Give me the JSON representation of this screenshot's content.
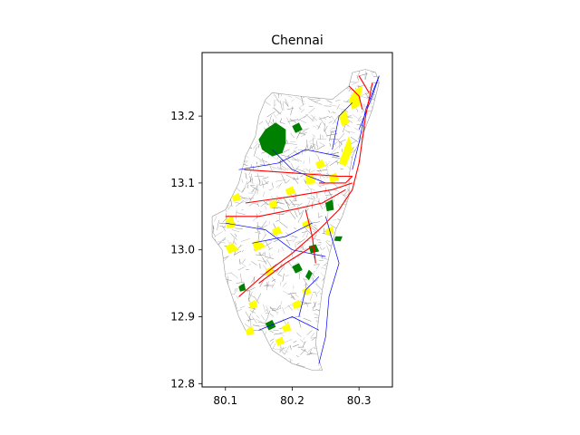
{
  "chart_data": {
    "type": "map",
    "title": "Chennai",
    "xlabel": "",
    "ylabel": "",
    "xlim": [
      80.065,
      80.35
    ],
    "ylim": [
      12.795,
      13.295
    ],
    "x_ticks": [
      80.1,
      80.2,
      80.3
    ],
    "x_tick_labels": [
      "80.1",
      "80.2",
      "80.3"
    ],
    "y_ticks": [
      12.8,
      12.9,
      13.0,
      13.1,
      13.2
    ],
    "y_tick_labels": [
      "12.8",
      "12.9",
      "13.0",
      "13.1",
      "13.2"
    ],
    "grid": false,
    "layers": [
      {
        "kind": "boundary",
        "fill": "#ffffff",
        "edge": "#9a9a9a",
        "outline": [
          [
            80.17,
            13.235
          ],
          [
            80.21,
            13.23
          ],
          [
            80.26,
            13.225
          ],
          [
            80.285,
            13.245
          ],
          [
            80.29,
            13.265
          ],
          [
            80.31,
            13.27
          ],
          [
            80.325,
            13.265
          ],
          [
            80.33,
            13.25
          ],
          [
            80.32,
            13.21
          ],
          [
            80.305,
            13.17
          ],
          [
            80.29,
            13.14
          ],
          [
            80.285,
            13.11
          ],
          [
            80.285,
            13.08
          ],
          [
            80.275,
            13.05
          ],
          [
            80.265,
            13.03
          ],
          [
            80.255,
            12.99
          ],
          [
            80.245,
            12.94
          ],
          [
            80.24,
            12.9
          ],
          [
            80.235,
            12.86
          ],
          [
            80.24,
            12.835
          ],
          [
            80.245,
            12.82
          ],
          [
            80.23,
            12.82
          ],
          [
            80.2,
            12.83
          ],
          [
            80.17,
            12.85
          ],
          [
            80.155,
            12.88
          ],
          [
            80.13,
            12.88
          ],
          [
            80.12,
            12.9
          ],
          [
            80.11,
            12.93
          ],
          [
            80.1,
            12.96
          ],
          [
            80.095,
            13.0
          ],
          [
            80.08,
            13.02
          ],
          [
            80.08,
            13.05
          ],
          [
            80.1,
            13.06
          ],
          [
            80.12,
            13.1
          ],
          [
            80.13,
            13.14
          ],
          [
            80.145,
            13.17
          ],
          [
            80.15,
            13.2
          ],
          [
            80.16,
            13.225
          ]
        ]
      },
      {
        "kind": "parks",
        "fill": "#008000",
        "polygons": [
          [
            [
              80.16,
              13.18
            ],
            [
              80.175,
              13.19
            ],
            [
              80.19,
              13.18
            ],
            [
              80.19,
              13.16
            ],
            [
              80.185,
              13.145
            ],
            [
              80.17,
              13.14
            ],
            [
              80.155,
              13.15
            ],
            [
              80.15,
              13.165
            ]
          ],
          [
            [
              80.2,
              13.185
            ],
            [
              80.21,
              13.19
            ],
            [
              80.215,
              13.18
            ],
            [
              80.205,
              13.175
            ]
          ],
          [
            [
              80.25,
              13.07
            ],
            [
              80.26,
              13.075
            ],
            [
              80.262,
              13.06
            ],
            [
              80.252,
              13.058
            ]
          ],
          [
            [
              80.225,
              13.005
            ],
            [
              80.235,
              13.008
            ],
            [
              80.24,
              12.998
            ],
            [
              80.228,
              12.995
            ]
          ],
          [
            [
              80.2,
              12.975
            ],
            [
              80.21,
              12.98
            ],
            [
              80.215,
              12.97
            ],
            [
              80.205,
              12.965
            ]
          ],
          [
            [
              80.16,
              12.89
            ],
            [
              80.17,
              12.895
            ],
            [
              80.175,
              12.885
            ],
            [
              80.165,
              12.88
            ]
          ],
          [
            [
              80.12,
              12.945
            ],
            [
              80.128,
              12.95
            ],
            [
              80.13,
              12.94
            ],
            [
              80.122,
              12.938
            ]
          ],
          [
            [
              80.265,
              13.02
            ],
            [
              80.275,
              13.02
            ],
            [
              80.272,
              13.013
            ],
            [
              80.263,
              13.014
            ]
          ],
          [
            [
              80.225,
              12.97
            ],
            [
              80.23,
              12.965
            ],
            [
              80.225,
              12.955
            ],
            [
              80.22,
              12.96
            ]
          ]
        ]
      },
      {
        "kind": "open_areas",
        "fill": "#ffff00",
        "polygons": [
          [
            [
              80.285,
              13.225
            ],
            [
              80.295,
              13.24
            ],
            [
              80.305,
              13.245
            ],
            [
              80.3,
              13.215
            ],
            [
              80.29,
              13.21
            ]
          ],
          [
            [
              80.27,
              13.13
            ],
            [
              80.285,
              13.17
            ],
            [
              80.29,
              13.15
            ],
            [
              80.28,
              13.125
            ]
          ],
          [
            [
              80.27,
              13.2
            ],
            [
              80.28,
              13.21
            ],
            [
              80.285,
              13.19
            ],
            [
              80.275,
              13.185
            ]
          ],
          [
            [
              80.235,
              13.13
            ],
            [
              80.245,
              13.135
            ],
            [
              80.25,
              13.125
            ],
            [
              80.238,
              13.122
            ]
          ],
          [
            [
              80.255,
              13.11
            ],
            [
              80.265,
              13.115
            ],
            [
              80.27,
              13.105
            ],
            [
              80.258,
              13.1
            ]
          ],
          [
            [
              80.1,
              13.045
            ],
            [
              80.11,
              13.05
            ],
            [
              80.115,
              13.035
            ],
            [
              80.103,
              13.032
            ]
          ],
          [
            [
              80.1,
              13.005
            ],
            [
              80.11,
              13.01
            ],
            [
              80.12,
              13.0
            ],
            [
              80.105,
              12.995
            ]
          ],
          [
            [
              80.14,
              13.01
            ],
            [
              80.15,
              13.015
            ],
            [
              80.16,
              13.005
            ],
            [
              80.145,
              12.998
            ]
          ],
          [
            [
              80.17,
              13.03
            ],
            [
              80.18,
              13.035
            ],
            [
              80.185,
              13.025
            ],
            [
              80.172,
              13.022
            ]
          ],
          [
            [
              80.22,
              13.11
            ],
            [
              80.23,
              13.115
            ],
            [
              80.235,
              13.1
            ],
            [
              80.222,
              13.098
            ]
          ],
          [
            [
              80.19,
              13.09
            ],
            [
              80.2,
              13.095
            ],
            [
              80.205,
              13.085
            ],
            [
              80.193,
              13.082
            ]
          ],
          [
            [
              80.215,
              12.94
            ],
            [
              80.225,
              12.945
            ],
            [
              80.228,
              12.935
            ],
            [
              80.218,
              12.932
            ]
          ],
          [
            [
              80.2,
              12.92
            ],
            [
              80.21,
              12.925
            ],
            [
              80.215,
              12.915
            ],
            [
              80.203,
              12.912
            ]
          ],
          [
            [
              80.135,
              12.92
            ],
            [
              80.145,
              12.925
            ],
            [
              80.148,
              12.915
            ],
            [
              80.138,
              12.912
            ]
          ],
          [
            [
              80.185,
              12.885
            ],
            [
              80.195,
              12.89
            ],
            [
              80.198,
              12.88
            ],
            [
              80.188,
              12.877
            ]
          ],
          [
            [
              80.13,
              12.88
            ],
            [
              80.14,
              12.885
            ],
            [
              80.143,
              12.875
            ],
            [
              80.133,
              12.872
            ]
          ],
          [
            [
              80.175,
              12.865
            ],
            [
              80.185,
              12.87
            ],
            [
              80.188,
              12.86
            ],
            [
              80.178,
              12.857
            ]
          ],
          [
            [
              80.25,
              13.03
            ],
            [
              80.26,
              13.035
            ],
            [
              80.262,
              13.025
            ],
            [
              80.252,
              13.022
            ]
          ],
          [
            [
              80.16,
              12.97
            ],
            [
              80.17,
              12.975
            ],
            [
              80.172,
              12.965
            ],
            [
              80.162,
              12.962
            ]
          ],
          [
            [
              80.11,
              13.08
            ],
            [
              80.12,
              13.085
            ],
            [
              80.122,
              13.075
            ],
            [
              80.112,
              13.072
            ]
          ],
          [
            [
              80.215,
              13.04
            ],
            [
              80.225,
              13.045
            ],
            [
              80.228,
              13.035
            ],
            [
              80.218,
              13.032
            ]
          ],
          [
            [
              80.165,
              13.07
            ],
            [
              80.175,
              13.075
            ],
            [
              80.178,
              13.065
            ],
            [
              80.168,
              13.062
            ]
          ]
        ]
      },
      {
        "kind": "major_roads",
        "stroke": "#ff0000",
        "lines": [
          [
            [
              80.128,
              13.12
            ],
            [
              80.2,
              13.115
            ],
            [
              80.27,
              13.11
            ],
            [
              80.29,
              13.11
            ]
          ],
          [
            [
              80.12,
              12.93
            ],
            [
              80.16,
              12.965
            ],
            [
              80.2,
              12.995
            ],
            [
              80.24,
              13.03
            ],
            [
              80.27,
              13.06
            ],
            [
              80.29,
              13.09
            ],
            [
              80.3,
              13.13
            ],
            [
              80.31,
              13.2
            ],
            [
              80.32,
              13.25
            ]
          ],
          [
            [
              80.1,
              13.05
            ],
            [
              80.15,
              13.05
            ],
            [
              80.2,
              13.06
            ],
            [
              80.245,
              13.07
            ],
            [
              80.28,
              13.09
            ]
          ],
          [
            [
              80.13,
              13.07
            ],
            [
              80.2,
              13.08
            ],
            [
              80.26,
              13.09
            ],
            [
              80.29,
              13.1
            ]
          ],
          [
            [
              80.22,
              13.06
            ],
            [
              80.23,
              13.02
            ],
            [
              80.235,
              12.98
            ]
          ],
          [
            [
              80.15,
              12.95
            ],
            [
              80.19,
              12.98
            ],
            [
              80.23,
              13.005
            ]
          ],
          [
            [
              80.24,
              13.1
            ],
            [
              80.28,
              13.1
            ],
            [
              80.29,
              13.11
            ]
          ],
          [
            [
              80.285,
              13.245
            ],
            [
              80.3,
              13.23
            ],
            [
              80.305,
              13.21
            ]
          ],
          [
            [
              80.3,
              13.26
            ],
            [
              80.315,
              13.235
            ]
          ]
        ]
      },
      {
        "kind": "minor_roads",
        "stroke": "#0000ff",
        "lines": [
          [
            [
              80.29,
              13.12
            ],
            [
              80.3,
              13.16
            ],
            [
              80.31,
              13.21
            ],
            [
              80.33,
              13.26
            ]
          ],
          [
            [
              80.25,
              13.05
            ],
            [
              80.27,
              12.98
            ],
            [
              80.255,
              12.93
            ],
            [
              80.25,
              12.87
            ],
            [
              80.24,
              12.83
            ]
          ],
          [
            [
              80.1,
              13.04
            ],
            [
              80.16,
              13.03
            ],
            [
              80.2,
              13.0
            ],
            [
              80.25,
              12.99
            ]
          ],
          [
            [
              80.17,
              13.15
            ],
            [
              80.2,
              13.12
            ],
            [
              80.25,
              13.1
            ]
          ],
          [
            [
              80.21,
              12.9
            ],
            [
              80.22,
              12.94
            ],
            [
              80.24,
              12.96
            ]
          ],
          [
            [
              80.12,
              13.12
            ],
            [
              80.18,
              13.13
            ],
            [
              80.22,
              13.15
            ],
            [
              80.27,
              13.14
            ]
          ],
          [
            [
              80.15,
              12.88
            ],
            [
              80.2,
              12.9
            ],
            [
              80.24,
              12.88
            ]
          ],
          [
            [
              80.3,
              13.18
            ],
            [
              80.32,
              13.23
            ],
            [
              80.33,
              13.26
            ]
          ],
          [
            [
              80.14,
              13.01
            ],
            [
              80.19,
              13.02
            ],
            [
              80.23,
              13.04
            ]
          ],
          [
            [
              80.26,
              13.15
            ],
            [
              80.27,
              13.2
            ],
            [
              80.29,
              13.22
            ]
          ]
        ]
      }
    ]
  }
}
